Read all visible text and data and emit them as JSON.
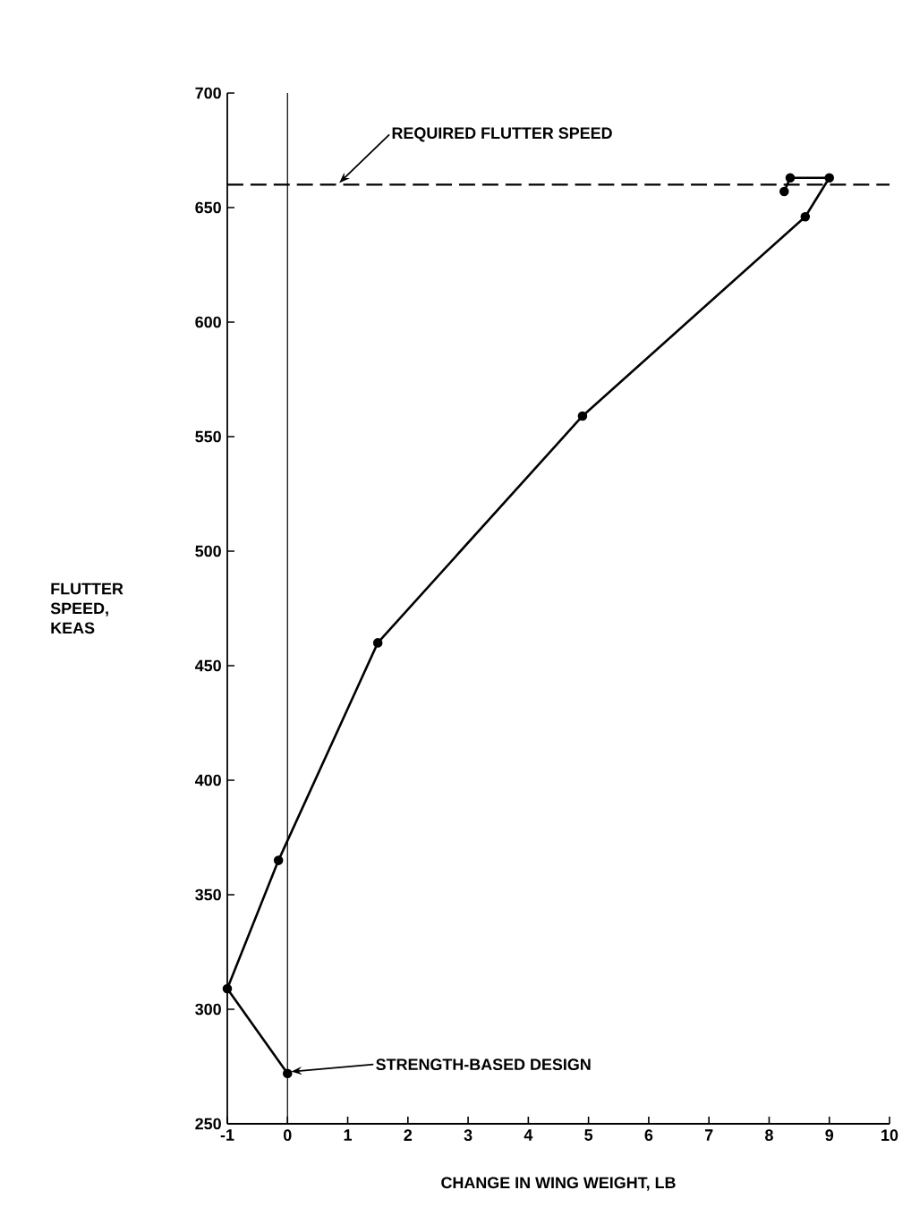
{
  "chart_data": {
    "type": "line",
    "xlabel": "CHANGE IN WING WEIGHT, LB",
    "ylabel": "FLUTTER SPEED, KEAS",
    "x": [
      0,
      -1,
      -0.15,
      1.5,
      4.9,
      8.6,
      9.0,
      8.35,
      8.25
    ],
    "series": [
      {
        "color": "#000000",
        "values": [
          272,
          309,
          365,
          460,
          559,
          646,
          663,
          663,
          657
        ]
      }
    ],
    "xlim": [
      -1,
      10
    ],
    "xticks": [
      -1,
      0,
      1,
      2,
      3,
      4,
      5,
      6,
      7,
      8,
      9,
      10
    ],
    "ylim": [
      250,
      700
    ],
    "yticks": [
      250,
      300,
      350,
      400,
      450,
      500,
      550,
      600,
      650,
      700
    ],
    "ref_lines": [
      {
        "axis": "y",
        "value": 660,
        "line_style": "dashed",
        "color": "#000000"
      },
      {
        "axis": "x",
        "value": 0,
        "line_style": "solid",
        "color": "#000000"
      }
    ],
    "annotations": [
      {
        "text": "REQUIRED FLUTTER SPEED",
        "x": 0.8,
        "y": 660
      },
      {
        "text": "STRENGTH-BASED DESIGN",
        "x": 0,
        "y": 272
      }
    ],
    "marker": "circle",
    "line_style": "solid"
  }
}
